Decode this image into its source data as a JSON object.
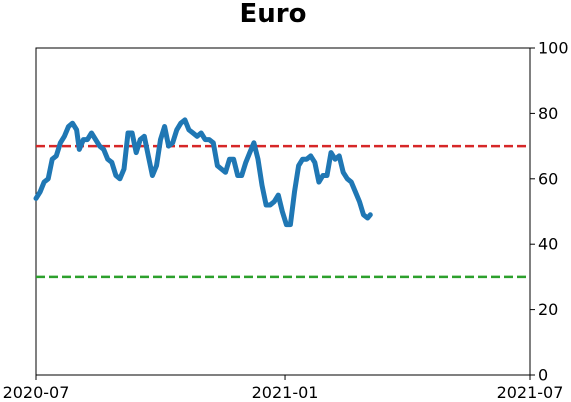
{
  "chart_data": {
    "type": "line",
    "title": "Euro",
    "xlabel": "",
    "ylabel": "",
    "x_range": [
      "2020-07-01",
      "2021-07-01"
    ],
    "x_ticks": [
      {
        "date": "2020-07-01",
        "label": "2020-07"
      },
      {
        "date": "2021-01-01",
        "label": "2021-01"
      },
      {
        "date": "2021-07-01",
        "label": "2021-07"
      }
    ],
    "ylim": [
      0,
      100
    ],
    "y_ticks": [
      0,
      20,
      40,
      60,
      80,
      100
    ],
    "y_axis_side": "right",
    "grid": false,
    "reference_lines": [
      {
        "y": 70,
        "color": "#d62728",
        "style": "dashed"
      },
      {
        "y": 30,
        "color": "#2ca02c",
        "style": "dashed"
      }
    ],
    "series": [
      {
        "color": "#1f77b4",
        "points": [
          [
            "2020-07-01",
            54
          ],
          [
            "2020-07-04",
            56
          ],
          [
            "2020-07-07",
            59
          ],
          [
            "2020-07-10",
            60
          ],
          [
            "2020-07-13",
            66
          ],
          [
            "2020-07-16",
            67
          ],
          [
            "2020-07-19",
            71
          ],
          [
            "2020-07-22",
            73
          ],
          [
            "2020-07-25",
            76
          ],
          [
            "2020-07-28",
            77
          ],
          [
            "2020-07-31",
            75
          ],
          [
            "2020-08-02",
            69
          ],
          [
            "2020-08-05",
            72
          ],
          [
            "2020-08-08",
            72
          ],
          [
            "2020-08-11",
            74
          ],
          [
            "2020-08-14",
            72
          ],
          [
            "2020-08-17",
            70
          ],
          [
            "2020-08-20",
            69
          ],
          [
            "2020-08-23",
            66
          ],
          [
            "2020-08-26",
            65
          ],
          [
            "2020-08-29",
            61
          ],
          [
            "2020-09-01",
            60
          ],
          [
            "2020-09-04",
            63
          ],
          [
            "2020-09-07",
            74
          ],
          [
            "2020-09-10",
            74
          ],
          [
            "2020-09-13",
            68
          ],
          [
            "2020-09-16",
            72
          ],
          [
            "2020-09-19",
            73
          ],
          [
            "2020-09-22",
            67
          ],
          [
            "2020-09-25",
            61
          ],
          [
            "2020-09-28",
            64
          ],
          [
            "2020-10-01",
            72
          ],
          [
            "2020-10-04",
            76
          ],
          [
            "2020-10-07",
            70
          ],
          [
            "2020-10-10",
            71
          ],
          [
            "2020-10-13",
            75
          ],
          [
            "2020-10-16",
            77
          ],
          [
            "2020-10-19",
            78
          ],
          [
            "2020-10-22",
            75
          ],
          [
            "2020-10-25",
            74
          ],
          [
            "2020-10-28",
            73
          ],
          [
            "2020-10-31",
            74
          ],
          [
            "2020-11-03",
            72
          ],
          [
            "2020-11-06",
            72
          ],
          [
            "2020-11-09",
            71
          ],
          [
            "2020-11-12",
            64
          ],
          [
            "2020-11-15",
            63
          ],
          [
            "2020-11-18",
            62
          ],
          [
            "2020-11-21",
            66
          ],
          [
            "2020-11-24",
            66
          ],
          [
            "2020-11-27",
            61
          ],
          [
            "2020-11-30",
            61
          ],
          [
            "2020-12-03",
            65
          ],
          [
            "2020-12-06",
            68
          ],
          [
            "2020-12-09",
            71
          ],
          [
            "2020-12-12",
            66
          ],
          [
            "2020-12-15",
            58
          ],
          [
            "2020-12-18",
            52
          ],
          [
            "2020-12-21",
            52
          ],
          [
            "2020-12-24",
            53
          ],
          [
            "2020-12-27",
            55
          ],
          [
            "2020-12-30",
            50
          ],
          [
            "2021-01-02",
            46
          ],
          [
            "2021-01-05",
            46
          ],
          [
            "2021-01-08",
            56
          ],
          [
            "2021-01-11",
            64
          ],
          [
            "2021-01-14",
            66
          ],
          [
            "2021-01-17",
            66
          ],
          [
            "2021-01-20",
            67
          ],
          [
            "2021-01-23",
            65
          ],
          [
            "2021-01-26",
            59
          ],
          [
            "2021-01-29",
            61
          ],
          [
            "2021-02-01",
            61
          ],
          [
            "2021-02-04",
            68
          ],
          [
            "2021-02-07",
            66
          ],
          [
            "2021-02-10",
            67
          ],
          [
            "2021-02-13",
            62
          ],
          [
            "2021-02-16",
            60
          ],
          [
            "2021-02-19",
            59
          ],
          [
            "2021-02-22",
            56
          ],
          [
            "2021-02-25",
            53
          ],
          [
            "2021-02-28",
            49
          ],
          [
            "2021-03-03",
            48
          ],
          [
            "2021-03-05",
            49
          ]
        ]
      }
    ]
  }
}
